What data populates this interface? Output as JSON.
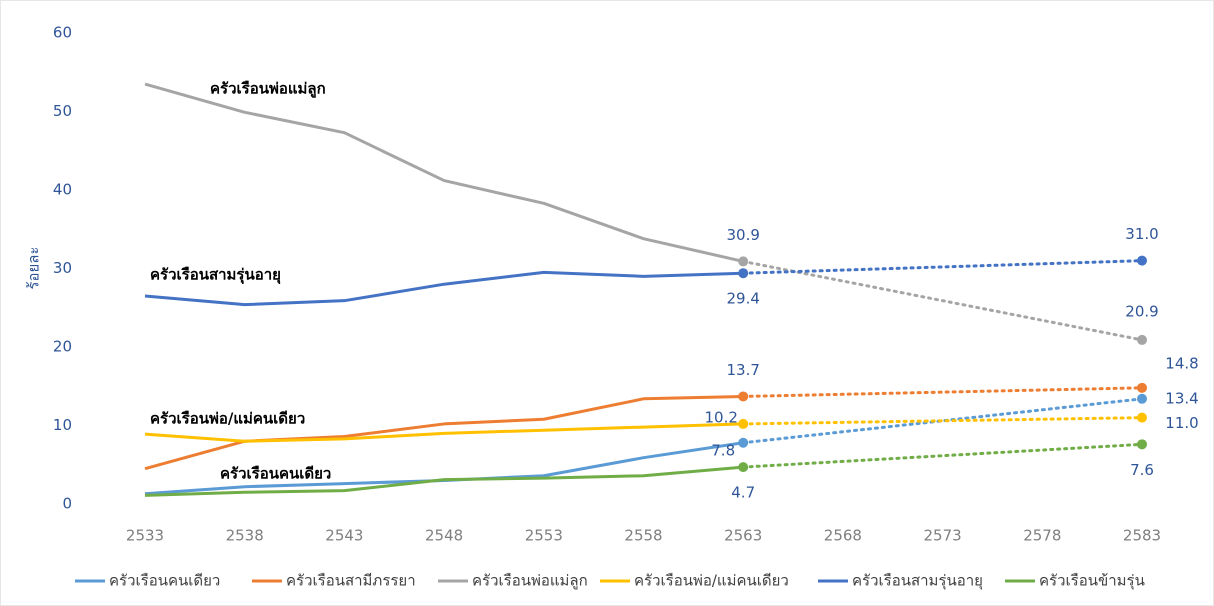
{
  "chart_data": {
    "type": "line",
    "y_label": "ร้อยละ",
    "x": [
      2533,
      2538,
      2543,
      2548,
      2553,
      2558,
      2563,
      2568,
      2573,
      2578,
      2583
    ],
    "xlim": [
      2533,
      2583
    ],
    "xticks": [
      2533,
      2538,
      2543,
      2548,
      2553,
      2558,
      2563,
      2568,
      2573,
      2578,
      2583
    ],
    "ylim": [
      0,
      60
    ],
    "yticks": [
      0,
      10,
      20,
      30,
      40,
      50,
      60
    ],
    "grid": false,
    "legend": "bottom",
    "series": [
      {
        "name": "ครัวเรือนคนเดียว",
        "color": "#5b9bd5",
        "values": [
          1.3,
          2.2,
          2.6,
          3.0,
          3.6,
          5.9,
          7.8,
          null,
          null,
          null,
          13.4
        ],
        "value_labels": [
          null,
          null,
          null,
          null,
          null,
          null,
          "7.8",
          null,
          null,
          null,
          "13.4"
        ]
      },
      {
        "name": "ครัวเรือนสามีภรรยา",
        "color": "#ed7d31",
        "values": [
          4.5,
          8.0,
          8.6,
          10.2,
          10.8,
          13.4,
          13.7,
          null,
          null,
          null,
          14.8
        ],
        "value_labels": [
          null,
          null,
          null,
          null,
          null,
          null,
          "13.7",
          null,
          null,
          null,
          "14.8"
        ]
      },
      {
        "name": "ครัวเรือนพ่อแม่ลูก",
        "color": "#a5a5a5",
        "values": [
          53.5,
          49.9,
          47.3,
          41.2,
          38.3,
          33.8,
          30.9,
          null,
          null,
          null,
          20.9
        ],
        "value_labels": [
          null,
          null,
          null,
          null,
          null,
          null,
          "30.9",
          null,
          null,
          null,
          "20.9"
        ]
      },
      {
        "name": "ครัวเรือนพ่อ/แม่คนเดียว",
        "color": "#ffc000",
        "values": [
          8.9,
          8.0,
          8.3,
          9.0,
          9.4,
          9.8,
          10.2,
          null,
          null,
          null,
          11.0
        ],
        "value_labels": [
          null,
          null,
          null,
          null,
          null,
          null,
          "10.2",
          null,
          null,
          null,
          "11.0"
        ]
      },
      {
        "name": "ครัวเรือนสามรุ่นอายุ",
        "color": "#4472c4",
        "values": [
          26.5,
          25.4,
          25.9,
          28.0,
          29.5,
          29.0,
          29.4,
          null,
          null,
          null,
          31.0
        ],
        "value_labels": [
          null,
          null,
          null,
          null,
          null,
          null,
          "29.4",
          null,
          null,
          null,
          "31.0"
        ]
      },
      {
        "name": "ครัวเรือนข้ามรุ่น",
        "color": "#70ad47",
        "values": [
          1.1,
          1.5,
          1.7,
          3.1,
          3.3,
          3.6,
          4.7,
          null,
          null,
          null,
          7.6
        ],
        "value_labels": [
          null,
          null,
          null,
          null,
          null,
          null,
          "4.7",
          null,
          null,
          null,
          "7.6"
        ]
      }
    ],
    "annotations": [
      "ครัวเรือนพ่อแม่ลูก",
      "ครัวเรือนสามรุ่นอายุ",
      "ครัวเรือนพ่อ/แม่คนเดียว",
      "ครัวเรือนคนเดียว"
    ]
  }
}
